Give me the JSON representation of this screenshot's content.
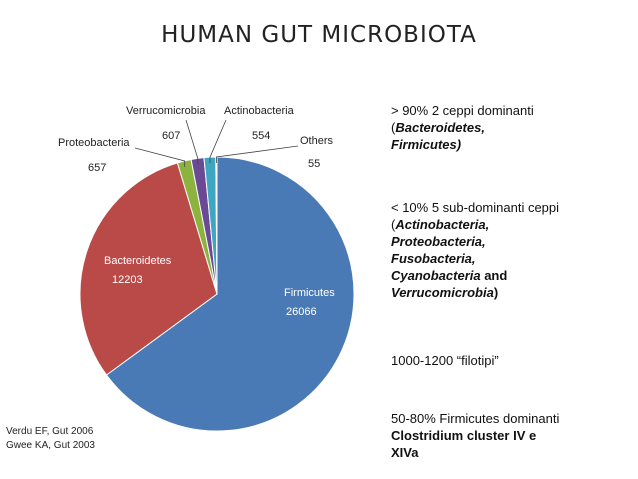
{
  "title": "HUMAN GUT MICROBIOTA",
  "chart_data": {
    "type": "pie",
    "slices": [
      {
        "label": "Firmicutes",
        "value": 26066,
        "value_text": "26066",
        "color": "#4a7ab5",
        "label_inside": true
      },
      {
        "label": "Bacteroidetes",
        "value": 12203,
        "value_text": "12203",
        "color": "#b94a48",
        "label_inside": true
      },
      {
        "label": "Proteobacteria",
        "value": 657,
        "value_text": "657",
        "color": "#8db33f",
        "label_inside": false
      },
      {
        "label": "Verrucomicrobia",
        "value": 607,
        "value_text": "607",
        "color": "#6b4a95",
        "label_inside": false
      },
      {
        "label": "Actinobacteria",
        "value": 554,
        "value_text": "554",
        "color": "#3fa6c2",
        "label_inside": false
      },
      {
        "label": "Others",
        "value": 55,
        "value_text": "55",
        "color": "#e8913d",
        "label_inside": false
      }
    ],
    "start_angle_deg": 0,
    "direction": "counterclockwise"
  },
  "text_blocks": {
    "b1_line1": "> 90% 2 ceppi dominanti",
    "b1_line2": "(",
    "b1_line2b": "Bacteroidetes,",
    "b1_line3": "Firmicutes)",
    "b2_line1": "< 10% 5 sub-dominanti ceppi",
    "b2_line2": "(",
    "b2_line2b": "Actinobacteria,",
    "b2_line3": "Proteobacteria,",
    "b2_line4": "Fusobacteria,",
    "b2_line5": "Cyanobacteria",
    "b2_line5b": " and",
    "b2_line6": "Verrucomicrobia",
    "b2_line6b": ")",
    "b3_line1": "1000-1200 “filotipi”",
    "b4_line1": "50-80% Firmicutes dominanti",
    "b4_line2": "Clostridium cluster IV e",
    "b4_line3": "XIVa"
  },
  "references": {
    "ref1": "Verdu EF, Gut 2006",
    "ref2": "Gwee KA, Gut 2003"
  }
}
